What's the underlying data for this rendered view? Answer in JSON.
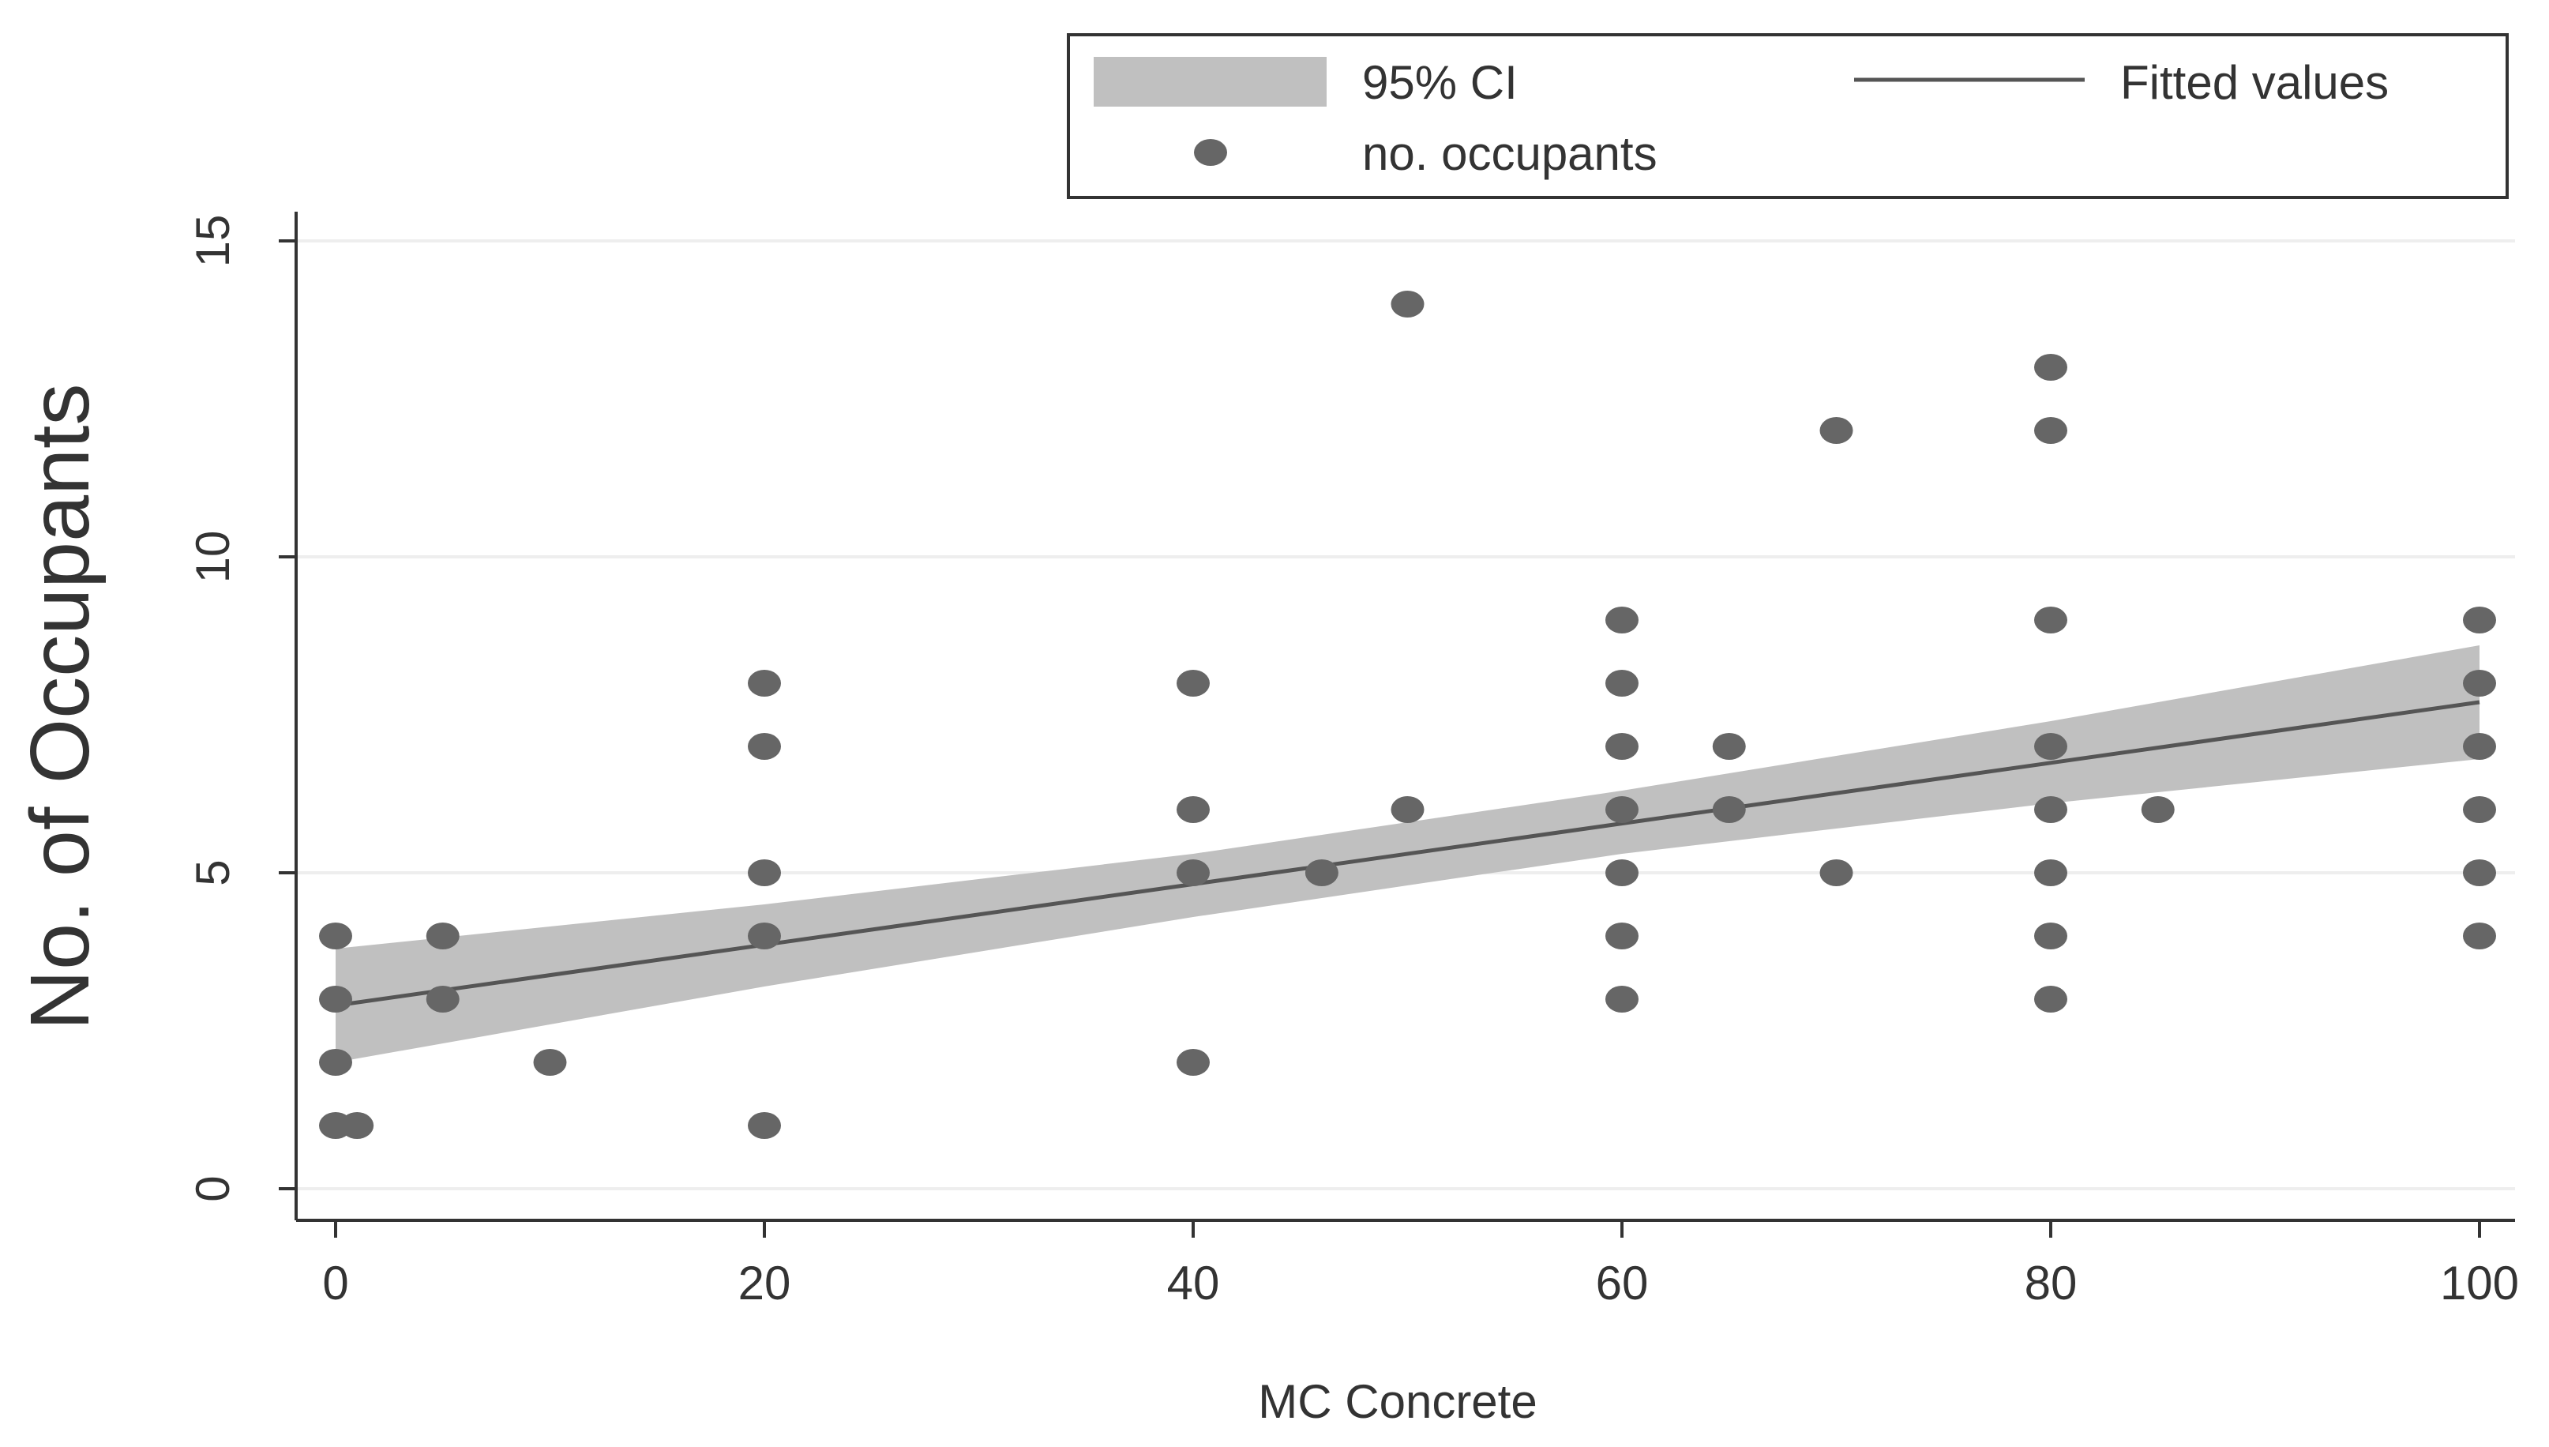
{
  "chart_data": {
    "type": "scatter",
    "title": "",
    "xlabel": "MC Concrete",
    "ylabel": "No. of Occupants",
    "xlim": [
      0,
      100
    ],
    "ylim": [
      0,
      15
    ],
    "xticks": [
      "0",
      "20",
      "40",
      "60",
      "80",
      "100"
    ],
    "xtick_values": [
      0,
      20,
      40,
      60,
      80,
      100
    ],
    "yticks": [
      "0",
      "5",
      "10",
      "15"
    ],
    "ytick_values": [
      0,
      5,
      10,
      15
    ],
    "grid": "horizontal",
    "legend_position": "top-right",
    "legend": {
      "ci_label": "95% CI",
      "fit_label": "Fitted values",
      "scatter_label": "no. occupants"
    },
    "colors": {
      "points": "#666666",
      "ci_band": "#c0c0c0",
      "fit_line": "#555555",
      "grid": "#eeeeee",
      "axis": "#333333"
    },
    "series": [
      {
        "name": "no. occupants",
        "type": "scatter",
        "points": [
          [
            0,
            1
          ],
          [
            0,
            2
          ],
          [
            0,
            3
          ],
          [
            0,
            4
          ],
          [
            1,
            1
          ],
          [
            5,
            3
          ],
          [
            5,
            4
          ],
          [
            10,
            2
          ],
          [
            20,
            1
          ],
          [
            20,
            4
          ],
          [
            20,
            5
          ],
          [
            20,
            7
          ],
          [
            20,
            8
          ],
          [
            40,
            2
          ],
          [
            40,
            5
          ],
          [
            40,
            6
          ],
          [
            40,
            8
          ],
          [
            46,
            5
          ],
          [
            50,
            6
          ],
          [
            50,
            14
          ],
          [
            60,
            3
          ],
          [
            60,
            4
          ],
          [
            60,
            5
          ],
          [
            60,
            6
          ],
          [
            60,
            7
          ],
          [
            60,
            8
          ],
          [
            60,
            9
          ],
          [
            65,
            6
          ],
          [
            65,
            7
          ],
          [
            70,
            5
          ],
          [
            70,
            12
          ],
          [
            80,
            3
          ],
          [
            80,
            4
          ],
          [
            80,
            5
          ],
          [
            80,
            6
          ],
          [
            80,
            7
          ],
          [
            80,
            9
          ],
          [
            80,
            12
          ],
          [
            80,
            13
          ],
          [
            85,
            6
          ],
          [
            100,
            4
          ],
          [
            100,
            5
          ],
          [
            100,
            6
          ],
          [
            100,
            7
          ],
          [
            100,
            8
          ],
          [
            100,
            9
          ]
        ]
      },
      {
        "name": "Fitted values",
        "type": "line",
        "x": [
          0,
          100
        ],
        "y": [
          2.9,
          7.7
        ]
      },
      {
        "name": "95% CI",
        "type": "area",
        "x": [
          0,
          20,
          40,
          60,
          80,
          100
        ],
        "lower": [
          2.0,
          3.2,
          4.3,
          5.3,
          6.1,
          6.8
        ],
        "upper": [
          3.8,
          4.5,
          5.3,
          6.3,
          7.4,
          8.6
        ]
      }
    ]
  }
}
